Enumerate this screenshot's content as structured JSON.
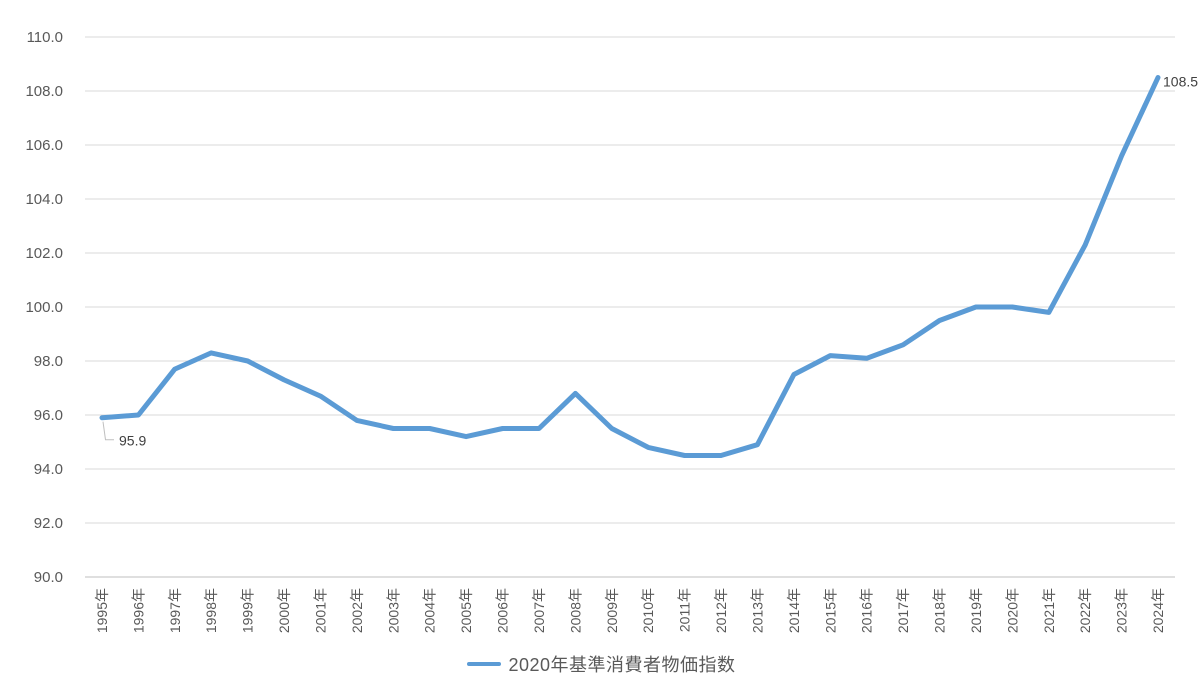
{
  "chart_data": {
    "type": "line",
    "title": "",
    "x": [
      "1995年",
      "1996年",
      "1997年",
      "1998年",
      "1999年",
      "2000年",
      "2001年",
      "2002年",
      "2003年",
      "2004年",
      "2005年",
      "2006年",
      "2007年",
      "2008年",
      "2009年",
      "2010年",
      "2011年",
      "2012年",
      "2013年",
      "2014年",
      "2015年",
      "2016年",
      "2017年",
      "2018年",
      "2019年",
      "2020年",
      "2021年",
      "2022年",
      "2023年",
      "2024年"
    ],
    "series": [
      {
        "name": "2020年基準消費者物価指数",
        "values": [
          95.9,
          96.0,
          97.7,
          98.3,
          98.0,
          97.3,
          96.7,
          95.8,
          95.5,
          95.5,
          95.2,
          95.5,
          95.5,
          96.8,
          95.5,
          94.8,
          94.5,
          94.5,
          94.9,
          97.5,
          98.2,
          98.1,
          98.6,
          99.5,
          100.0,
          100.0,
          99.8,
          102.3,
          105.6,
          108.5
        ]
      }
    ],
    "xlabel": "",
    "ylabel": "",
    "ylim": [
      90.0,
      110.0
    ],
    "ytick_step": 2.0,
    "yticks": [
      "110.0",
      "108.0",
      "106.0",
      "104.0",
      "102.0",
      "100.0",
      "98.0",
      "96.0",
      "94.0",
      "92.0",
      "90.0"
    ],
    "grid": "horizontal",
    "legend_position": "bottom",
    "point_labels": [
      {
        "index": 0,
        "text": "95.9",
        "position": "below-right",
        "leader": true
      },
      {
        "index": 29,
        "text": "108.5",
        "position": "right",
        "leader": false
      }
    ],
    "colors": {
      "line": "#5B9BD5",
      "grid": "#D9D9D9",
      "axis": "#BFBFBF",
      "tick_text": "#595959",
      "label_text": "#404040",
      "leader": "#BFBFBF",
      "background": "#FFFFFF"
    }
  }
}
